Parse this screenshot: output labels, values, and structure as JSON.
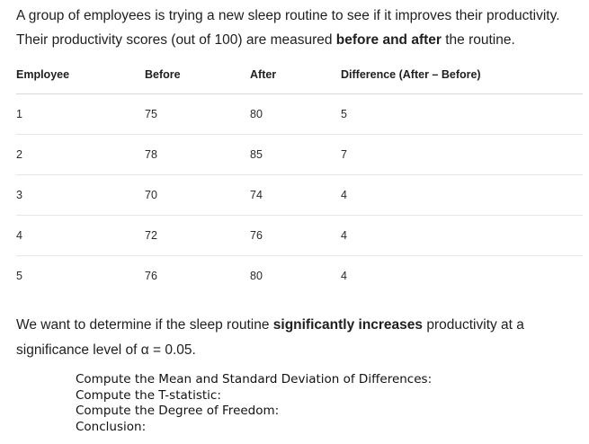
{
  "intro": {
    "line1": "A group of employees is trying a new sleep routine to see if it improves their productivity.",
    "line2_pre": "Their productivity scores (out of 100) are measured ",
    "line2_bold": "before and after",
    "line2_post": " the routine."
  },
  "table": {
    "headers": [
      "Employee",
      "Before",
      "After",
      "Difference (After – Before)"
    ],
    "rows": [
      [
        "1",
        "75",
        "80",
        "5"
      ],
      [
        "2",
        "78",
        "85",
        "7"
      ],
      [
        "3",
        "70",
        "74",
        "4"
      ],
      [
        "4",
        "72",
        "76",
        "4"
      ],
      [
        "5",
        "76",
        "80",
        "4"
      ]
    ]
  },
  "question": {
    "pre": "We want to determine if the sleep routine ",
    "bold": "significantly increases",
    "post": " productivity at a significance level of α = 0.05."
  },
  "tasks": [
    "Compute the Mean and Standard Deviation of Differences:",
    "Compute the T-statistic:",
    "Compute the Degree of Freedom:",
    "Conclusion:"
  ]
}
